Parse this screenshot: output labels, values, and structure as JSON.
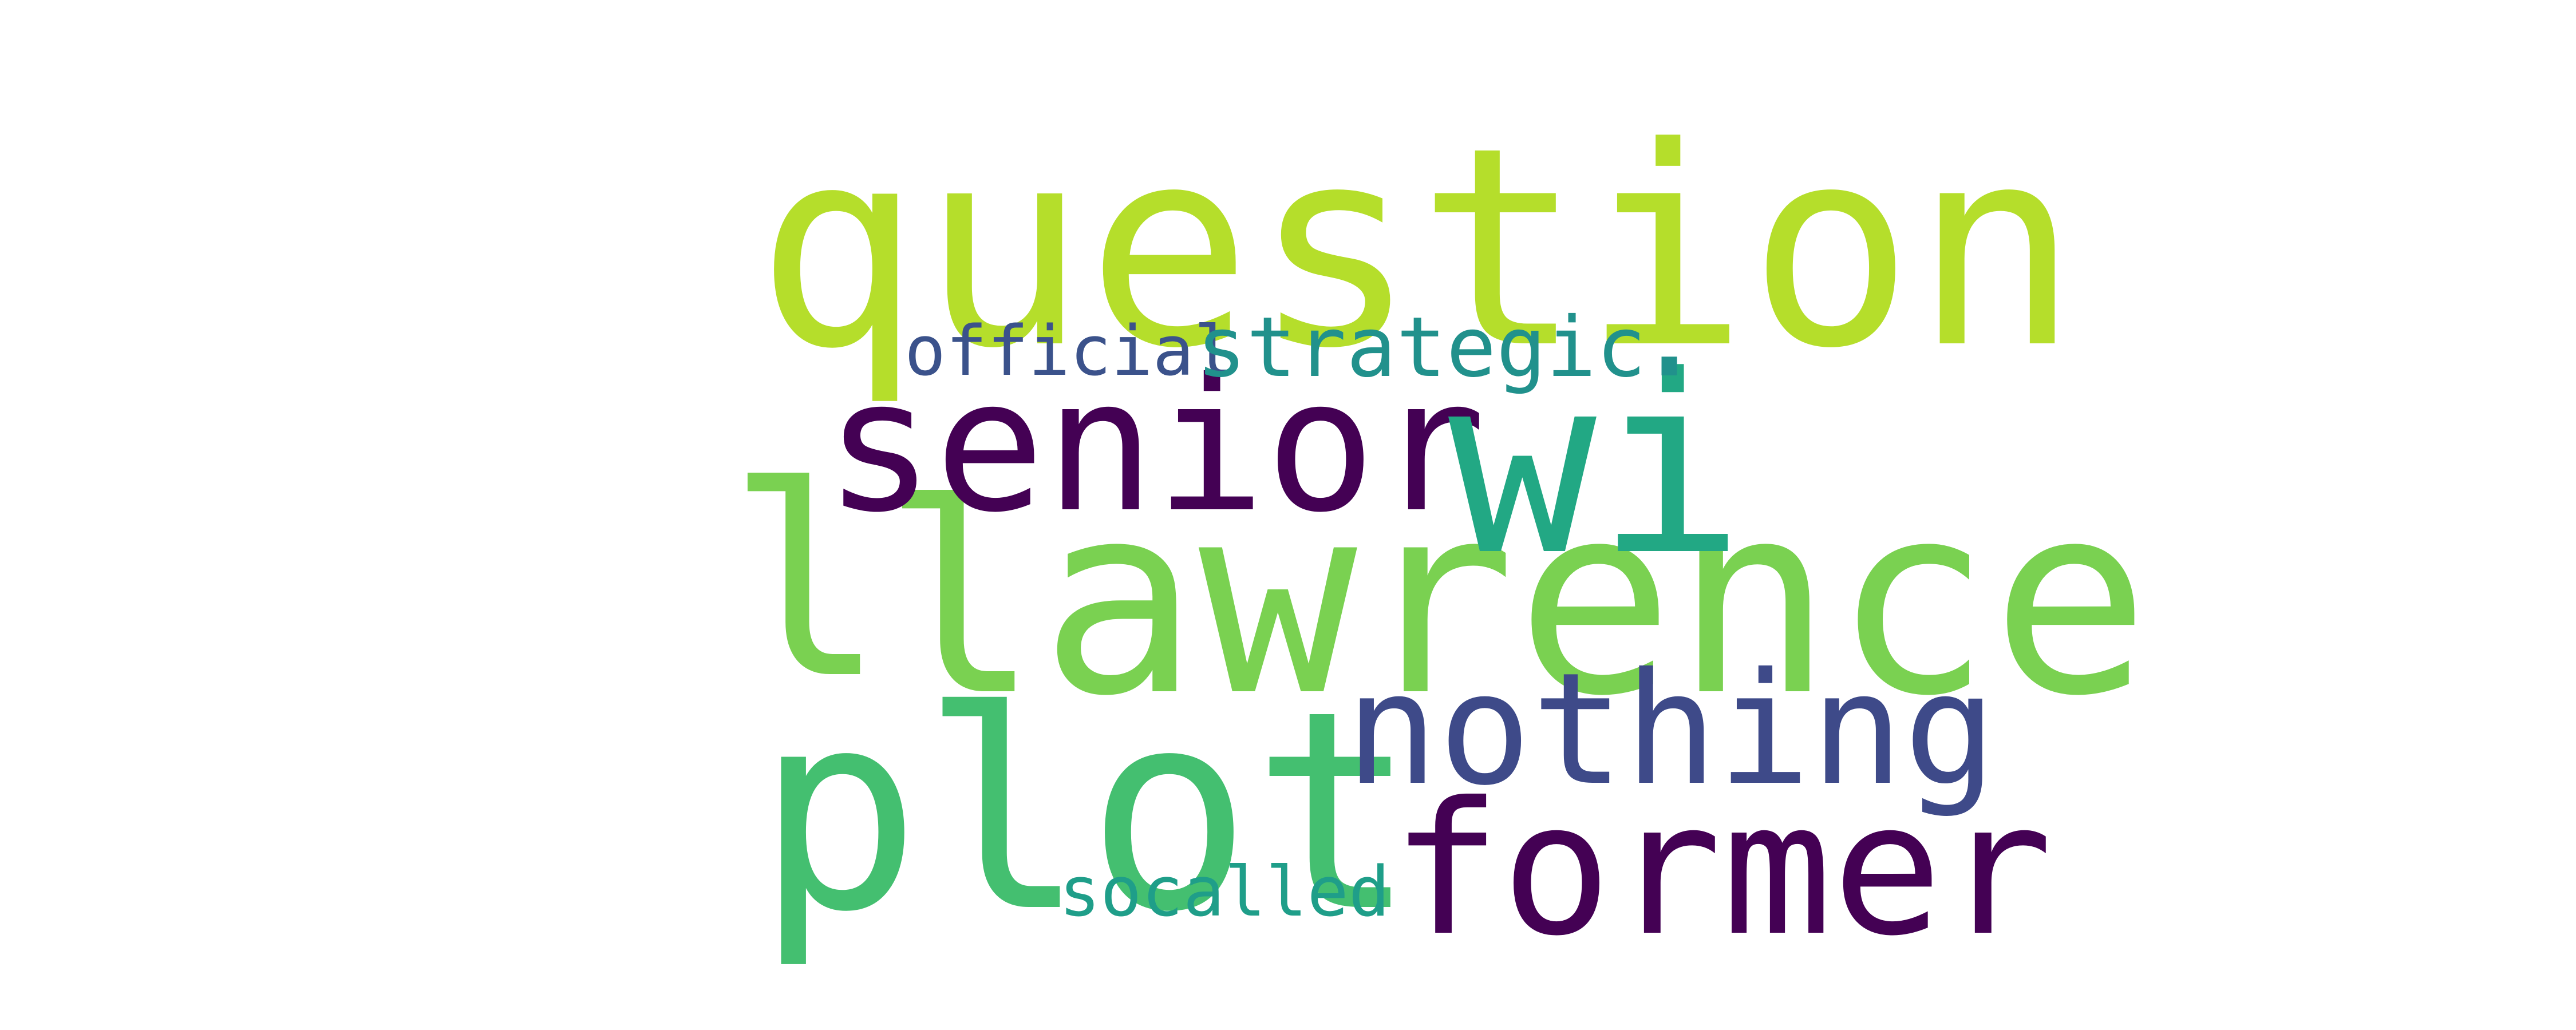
{
  "wordcloud": {
    "words": [
      {
        "key": "question",
        "text": "question",
        "color": "#b5de2b"
      },
      {
        "key": "lawrence",
        "text": "lawrence",
        "color": "#7ad151"
      },
      {
        "key": "plot",
        "text": "plot",
        "color": "#44bf70"
      },
      {
        "key": "senior",
        "text": "senior",
        "color": "#440154"
      },
      {
        "key": "wi",
        "text": "wi",
        "color": "#22a884"
      },
      {
        "key": "nothing",
        "text": "nothing",
        "color": "#3e4a89"
      },
      {
        "key": "former",
        "text": "former",
        "color": "#440154"
      },
      {
        "key": "official",
        "text": "official",
        "color": "#3b528b"
      },
      {
        "key": "strategic",
        "text": "strategic",
        "color": "#21918c"
      },
      {
        "key": "socalled",
        "text": "socalled",
        "color": "#1f9e89"
      },
      {
        "key": "dot_period",
        "text": ".",
        "color": "#21918c"
      },
      {
        "key": "mark_l",
        "text": "l",
        "color": "#7ad151"
      }
    ]
  }
}
